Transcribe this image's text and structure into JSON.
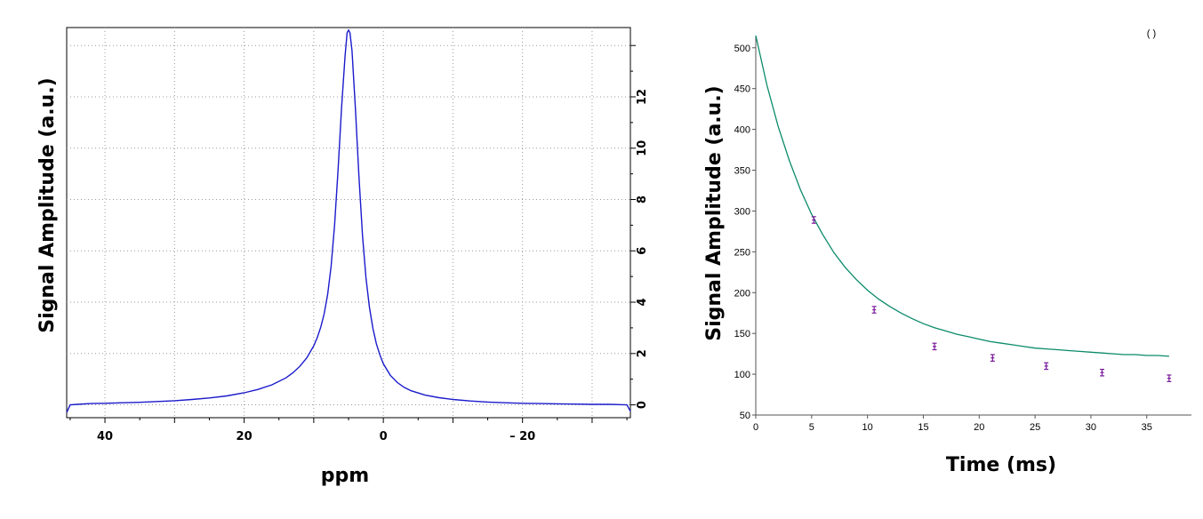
{
  "chart_data": [
    {
      "type": "line",
      "xlabel": "ppm",
      "ylabel": "Signal Amplitude (a.u.)",
      "xlim": [
        45.5,
        -35.5
      ],
      "ylim": [
        -0.5,
        14.7
      ],
      "x_reversed": true,
      "x_ticks": [
        40,
        20,
        0,
        -20
      ],
      "x_tick_labels": [
        "40",
        "20",
        "0",
        "– 20"
      ],
      "y_ticks": [
        0,
        2,
        4,
        6,
        8,
        10,
        12
      ],
      "y_tick_labels": [
        "0",
        "2",
        "4",
        "6",
        "8",
        "10",
        "12"
      ],
      "y_axis_position": "right",
      "grid": true,
      "series": [
        {
          "color": "#1a1acc",
          "x": [
            45.5,
            45,
            44,
            42,
            40,
            37.5,
            35,
            32.5,
            30,
            27.5,
            25,
            22.5,
            20,
            18,
            16,
            14,
            13,
            12,
            11,
            10,
            9.5,
            9,
            8.5,
            8,
            7.5,
            7,
            6.5,
            6,
            5.5,
            5.2,
            5,
            4.8,
            4.5,
            4,
            3.5,
            3,
            2.5,
            2,
            1.5,
            1,
            0.5,
            0,
            -1,
            -2,
            -3,
            -4,
            -6,
            -8,
            -10,
            -12.5,
            -15,
            -17.5,
            -20,
            -22.5,
            -25,
            -27.5,
            -30,
            -32.5,
            -34,
            -35,
            -35.5
          ],
          "y": [
            -0.3,
            0.0,
            0.02,
            0.05,
            0.06,
            0.08,
            0.1,
            0.13,
            0.16,
            0.21,
            0.27,
            0.35,
            0.47,
            0.6,
            0.78,
            1.05,
            1.25,
            1.5,
            1.83,
            2.3,
            2.62,
            3.02,
            3.55,
            4.3,
            5.4,
            7.0,
            9.2,
            11.6,
            13.6,
            14.5,
            14.6,
            14.5,
            13.8,
            11.5,
            8.9,
            6.6,
            4.95,
            3.8,
            2.98,
            2.38,
            1.95,
            1.6,
            1.15,
            0.87,
            0.68,
            0.55,
            0.38,
            0.28,
            0.21,
            0.15,
            0.11,
            0.08,
            0.06,
            0.05,
            0.04,
            0.03,
            0.02,
            0.02,
            0.01,
            0.0,
            -0.25
          ]
        }
      ]
    },
    {
      "type": "scatter",
      "xlabel": "Time (ms)",
      "ylabel": "Signal Amplitude (a.u.)",
      "xlim": [
        0,
        39
      ],
      "ylim": [
        50,
        515
      ],
      "x_ticks": [
        0,
        5,
        10,
        15,
        20,
        25,
        30,
        35
      ],
      "y_ticks": [
        50,
        100,
        150,
        200,
        250,
        300,
        350,
        400,
        450,
        500
      ],
      "grid": false,
      "corner_mark": "( )",
      "series": [
        {
          "kind": "points",
          "color": "#7a1a9a",
          "x": [
            5.2,
            10.6,
            16.0,
            21.2,
            26.0,
            31.0,
            37.0
          ],
          "y": [
            289,
            179,
            134,
            120,
            110,
            102,
            95
          ],
          "error": [
            4,
            4,
            4,
            4,
            4,
            4,
            4
          ]
        },
        {
          "kind": "fit",
          "color": "#0a8a6a",
          "x": [
            0,
            1,
            2,
            3,
            4,
            5,
            6,
            7,
            8,
            9,
            10,
            11,
            12,
            13,
            14,
            15,
            16,
            17,
            18,
            19,
            20,
            21,
            22,
            23,
            24,
            25,
            26,
            27,
            28,
            29,
            30,
            31,
            32,
            33,
            34,
            35,
            36,
            37
          ],
          "y": [
            515,
            454,
            404,
            362,
            326,
            296,
            271,
            249,
            231,
            216,
            203,
            192,
            183,
            175,
            168,
            162,
            157,
            153,
            149,
            146,
            143,
            140,
            138,
            136,
            134,
            132,
            131,
            130,
            129,
            128,
            127,
            126,
            125,
            124,
            124,
            123,
            123,
            122
          ]
        }
      ]
    }
  ]
}
